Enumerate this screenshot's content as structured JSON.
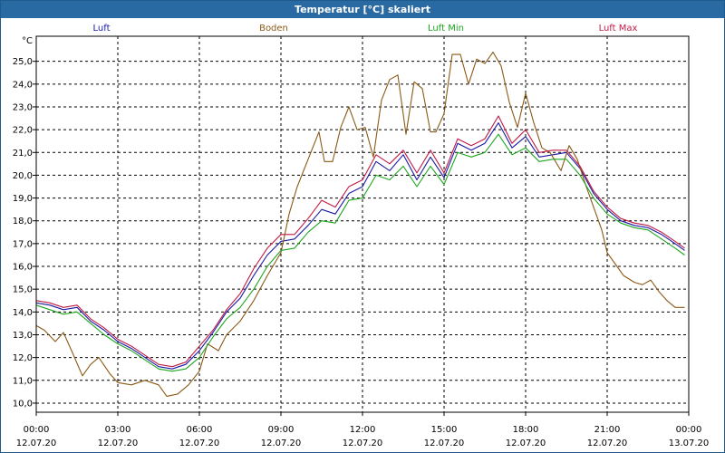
{
  "window": {
    "title": "Temperatur [°C] skaliert"
  },
  "chart_data": {
    "type": "line",
    "title": "Temperatur [°C] skaliert",
    "ylabel": "°C",
    "ylim": [
      9.6,
      26.1
    ],
    "yticks": [
      10.0,
      11.0,
      12.0,
      13.0,
      14.0,
      15.0,
      16.0,
      17.0,
      18.0,
      19.0,
      20.0,
      21.0,
      22.0,
      23.0,
      24.0,
      25.0
    ],
    "yticks_labels": [
      "10,0",
      "11,0",
      "12,0",
      "13,0",
      "14,0",
      "15,0",
      "16,0",
      "17,0",
      "18,0",
      "19,0",
      "20,0",
      "21,0",
      "22,0",
      "23,0",
      "24,0",
      "25,0"
    ],
    "xlim": [
      0,
      24
    ],
    "xticks": [
      {
        "x": 0,
        "time": "00:00",
        "date": "12.07.20"
      },
      {
        "x": 3,
        "time": "03:00",
        "date": "12.07.20"
      },
      {
        "x": 6,
        "time": "06:00",
        "date": "12.07.20"
      },
      {
        "x": 9,
        "time": "09:00",
        "date": "12.07.20"
      },
      {
        "x": 12,
        "time": "12:00",
        "date": "12.07.20"
      },
      {
        "x": 15,
        "time": "15:00",
        "date": "12.07.20"
      },
      {
        "x": 18,
        "time": "18:00",
        "date": "12.07.20"
      },
      {
        "x": 21,
        "time": "21:00",
        "date": "12.07.20"
      },
      {
        "x": 24,
        "time": "00:00",
        "date": "13.07.20"
      }
    ],
    "grid": true,
    "series": [
      {
        "name": "Luft",
        "color": "#1a1aa6",
        "points": [
          [
            0,
            14.4
          ],
          [
            0.5,
            14.3
          ],
          [
            1,
            14.1
          ],
          [
            1.5,
            14.2
          ],
          [
            2,
            13.6
          ],
          [
            2.5,
            13.2
          ],
          [
            3,
            12.7
          ],
          [
            3.5,
            12.4
          ],
          [
            4,
            12.0
          ],
          [
            4.5,
            11.6
          ],
          [
            5,
            11.5
          ],
          [
            5.5,
            11.7
          ],
          [
            6,
            12.3
          ],
          [
            6.5,
            13.1
          ],
          [
            7,
            14.0
          ],
          [
            7.5,
            14.6
          ],
          [
            8,
            15.6
          ],
          [
            8.5,
            16.5
          ],
          [
            9,
            17.1
          ],
          [
            9.5,
            17.2
          ],
          [
            10,
            17.8
          ],
          [
            10.5,
            18.5
          ],
          [
            11,
            18.3
          ],
          [
            11.5,
            19.2
          ],
          [
            12,
            19.5
          ],
          [
            12.5,
            20.6
          ],
          [
            13,
            20.2
          ],
          [
            13.5,
            20.9
          ],
          [
            14,
            19.8
          ],
          [
            14.5,
            20.8
          ],
          [
            15,
            19.9
          ],
          [
            15.5,
            21.4
          ],
          [
            16,
            21.1
          ],
          [
            16.5,
            21.4
          ],
          [
            17,
            22.3
          ],
          [
            17.5,
            21.2
          ],
          [
            18,
            21.7
          ],
          [
            18.5,
            20.8
          ],
          [
            19,
            20.9
          ],
          [
            19.5,
            21.0
          ],
          [
            20,
            20.3
          ],
          [
            20.5,
            19.2
          ],
          [
            21,
            18.5
          ],
          [
            21.5,
            18.0
          ],
          [
            22,
            17.8
          ],
          [
            22.5,
            17.7
          ],
          [
            23,
            17.4
          ],
          [
            23.5,
            17.0
          ],
          [
            23.85,
            16.7
          ]
        ]
      },
      {
        "name": "Boden",
        "color": "#8b5a16",
        "points": [
          [
            0,
            13.4
          ],
          [
            0.3,
            13.2
          ],
          [
            0.7,
            12.7
          ],
          [
            1,
            13.1
          ],
          [
            1.3,
            12.3
          ],
          [
            1.7,
            11.2
          ],
          [
            2,
            11.7
          ],
          [
            2.3,
            12.0
          ],
          [
            2.7,
            11.3
          ],
          [
            3,
            10.9
          ],
          [
            3.5,
            10.8
          ],
          [
            4,
            11.0
          ],
          [
            4.5,
            10.8
          ],
          [
            4.8,
            10.3
          ],
          [
            5.2,
            10.4
          ],
          [
            5.6,
            10.8
          ],
          [
            6,
            11.4
          ],
          [
            6.3,
            12.6
          ],
          [
            6.7,
            12.3
          ],
          [
            7,
            13.0
          ],
          [
            7.5,
            13.6
          ],
          [
            8,
            14.5
          ],
          [
            8.5,
            15.6
          ],
          [
            9,
            16.6
          ],
          [
            9.3,
            18.3
          ],
          [
            9.6,
            19.5
          ],
          [
            10,
            20.7
          ],
          [
            10.4,
            21.9
          ],
          [
            10.6,
            20.6
          ],
          [
            10.9,
            20.6
          ],
          [
            11.2,
            22.1
          ],
          [
            11.5,
            23.0
          ],
          [
            11.8,
            22.0
          ],
          [
            12.1,
            22.1
          ],
          [
            12.4,
            20.8
          ],
          [
            12.7,
            23.3
          ],
          [
            13,
            24.2
          ],
          [
            13.3,
            24.4
          ],
          [
            13.6,
            21.8
          ],
          [
            13.9,
            24.1
          ],
          [
            14.2,
            23.8
          ],
          [
            14.5,
            21.9
          ],
          [
            14.7,
            21.9
          ],
          [
            15,
            22.7
          ],
          [
            15.3,
            25.3
          ],
          [
            15.6,
            25.3
          ],
          [
            15.9,
            24.0
          ],
          [
            16.2,
            25.1
          ],
          [
            16.5,
            24.9
          ],
          [
            16.8,
            25.4
          ],
          [
            17.1,
            24.8
          ],
          [
            17.4,
            23.2
          ],
          [
            17.7,
            22.1
          ],
          [
            18,
            23.6
          ],
          [
            18.3,
            22.3
          ],
          [
            18.6,
            21.2
          ],
          [
            18.9,
            21.0
          ],
          [
            19.3,
            20.2
          ],
          [
            19.6,
            21.3
          ],
          [
            19.9,
            20.7
          ],
          [
            20.2,
            19.6
          ],
          [
            20.5,
            18.6
          ],
          [
            20.8,
            17.6
          ],
          [
            21,
            16.6
          ],
          [
            21.3,
            16.1
          ],
          [
            21.6,
            15.6
          ],
          [
            22,
            15.3
          ],
          [
            22.3,
            15.2
          ],
          [
            22.6,
            15.4
          ],
          [
            22.9,
            14.9
          ],
          [
            23.2,
            14.5
          ],
          [
            23.5,
            14.2
          ],
          [
            23.85,
            14.2
          ]
        ]
      },
      {
        "name": "Luft Min",
        "color": "#1ea61e",
        "points": [
          [
            0,
            14.3
          ],
          [
            0.5,
            14.1
          ],
          [
            1,
            13.9
          ],
          [
            1.5,
            14.0
          ],
          [
            2,
            13.5
          ],
          [
            2.5,
            13.0
          ],
          [
            3,
            12.6
          ],
          [
            3.5,
            12.3
          ],
          [
            4,
            11.9
          ],
          [
            4.5,
            11.5
          ],
          [
            5,
            11.4
          ],
          [
            5.5,
            11.5
          ],
          [
            6,
            12.0
          ],
          [
            6.5,
            12.9
          ],
          [
            7,
            13.7
          ],
          [
            7.5,
            14.2
          ],
          [
            8,
            15.0
          ],
          [
            8.5,
            16.0
          ],
          [
            9,
            16.7
          ],
          [
            9.5,
            16.8
          ],
          [
            10,
            17.5
          ],
          [
            10.5,
            18.0
          ],
          [
            11,
            17.9
          ],
          [
            11.5,
            18.9
          ],
          [
            12,
            19.0
          ],
          [
            12.5,
            20.0
          ],
          [
            13,
            19.8
          ],
          [
            13.5,
            20.4
          ],
          [
            14,
            19.5
          ],
          [
            14.5,
            20.4
          ],
          [
            15,
            19.6
          ],
          [
            15.5,
            21.0
          ],
          [
            16,
            20.8
          ],
          [
            16.5,
            21.0
          ],
          [
            17,
            21.8
          ],
          [
            17.5,
            20.9
          ],
          [
            18,
            21.2
          ],
          [
            18.5,
            20.6
          ],
          [
            19,
            20.7
          ],
          [
            19.5,
            20.7
          ],
          [
            20,
            20.0
          ],
          [
            20.5,
            19.0
          ],
          [
            21,
            18.3
          ],
          [
            21.5,
            17.9
          ],
          [
            22,
            17.7
          ],
          [
            22.5,
            17.6
          ],
          [
            23,
            17.2
          ],
          [
            23.5,
            16.8
          ],
          [
            23.85,
            16.5
          ]
        ]
      },
      {
        "name": "Luft Max",
        "color": "#c01a44",
        "points": [
          [
            0,
            14.5
          ],
          [
            0.5,
            14.4
          ],
          [
            1,
            14.2
          ],
          [
            1.5,
            14.3
          ],
          [
            2,
            13.7
          ],
          [
            2.5,
            13.3
          ],
          [
            3,
            12.8
          ],
          [
            3.5,
            12.5
          ],
          [
            4,
            12.1
          ],
          [
            4.5,
            11.7
          ],
          [
            5,
            11.6
          ],
          [
            5.5,
            11.8
          ],
          [
            6,
            12.5
          ],
          [
            6.5,
            13.2
          ],
          [
            7,
            14.1
          ],
          [
            7.5,
            14.8
          ],
          [
            8,
            15.9
          ],
          [
            8.5,
            16.8
          ],
          [
            9,
            17.4
          ],
          [
            9.5,
            17.4
          ],
          [
            10,
            18.1
          ],
          [
            10.5,
            18.9
          ],
          [
            11,
            18.6
          ],
          [
            11.5,
            19.5
          ],
          [
            12,
            19.8
          ],
          [
            12.5,
            20.9
          ],
          [
            13,
            20.5
          ],
          [
            13.5,
            21.1
          ],
          [
            14,
            20.1
          ],
          [
            14.5,
            21.1
          ],
          [
            15,
            20.1
          ],
          [
            15.5,
            21.6
          ],
          [
            16,
            21.3
          ],
          [
            16.5,
            21.6
          ],
          [
            17,
            22.6
          ],
          [
            17.5,
            21.4
          ],
          [
            18,
            22.0
          ],
          [
            18.5,
            21.0
          ],
          [
            19,
            21.1
          ],
          [
            19.5,
            21.1
          ],
          [
            20,
            20.4
          ],
          [
            20.5,
            19.3
          ],
          [
            21,
            18.6
          ],
          [
            21.5,
            18.1
          ],
          [
            22,
            17.9
          ],
          [
            22.5,
            17.8
          ],
          [
            23,
            17.5
          ],
          [
            23.5,
            17.1
          ],
          [
            23.85,
            16.8
          ]
        ]
      }
    ]
  }
}
